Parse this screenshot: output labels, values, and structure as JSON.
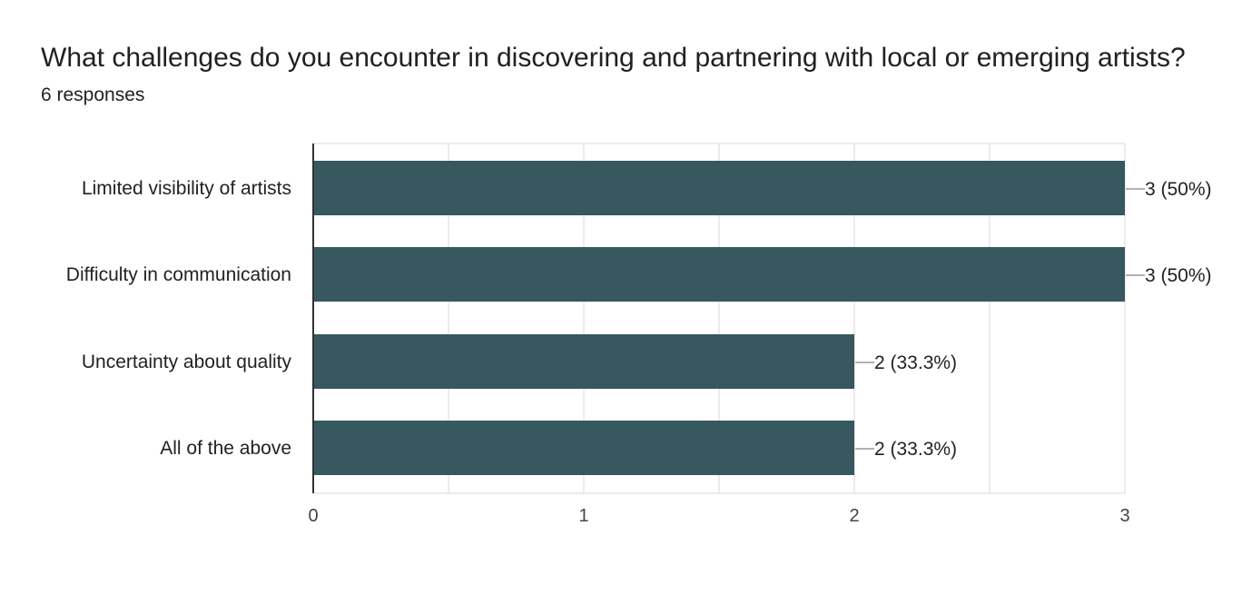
{
  "question": {
    "title": "What challenges do you encounter in discovering and partnering with local or emerging artists?",
    "responses": "6 responses"
  },
  "colors": {
    "bar": "#37585e",
    "grid": "#e6e6e6",
    "axis": "#333333",
    "leader": "#999999"
  },
  "chart_data": {
    "type": "bar",
    "orientation": "horizontal",
    "categories": [
      "Limited visibility of artists",
      "Difficulty in communication",
      "Uncertainty about quality",
      "All of the above"
    ],
    "values": [
      3,
      3,
      2,
      2
    ],
    "data_labels": [
      "3 (50%)",
      "3 (50%)",
      "2 (33.3%)",
      "2 (33.3%)"
    ],
    "xlim": [
      0,
      3
    ],
    "xticks": [
      0,
      1,
      2,
      3
    ],
    "tick_labels": [
      "0",
      "1",
      "2",
      "3"
    ],
    "grid": true
  }
}
